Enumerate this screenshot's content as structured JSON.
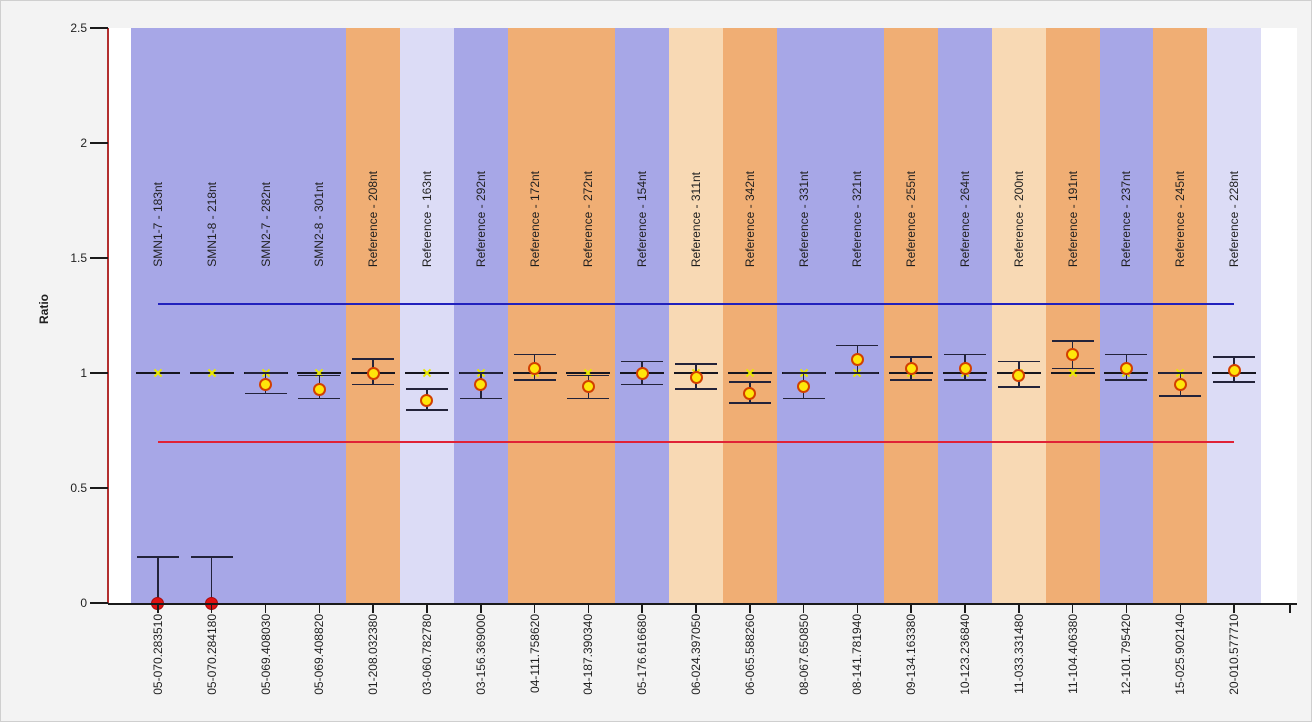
{
  "chart_data": {
    "type": "scatter",
    "title": "",
    "ylabel": "Ratio",
    "ylim": [
      0,
      2.5
    ],
    "yticks": [
      "0",
      "0.5",
      "1",
      "1.5",
      "2",
      "2.5"
    ],
    "grid": false,
    "legend_position": "none",
    "upper_limit": 1.3,
    "lower_limit": 0.7,
    "expected_ratio": 1.0,
    "colors": {
      "band_blue": "#a7a7e7",
      "band_orange": "#f0ae74",
      "band_lavender": "#dcdcf6",
      "band_peach": "#f8d9b4",
      "upper_limit_line": "#2121bd",
      "lower_limit_line": "#e02236",
      "y_axis_line": "#b22f2f",
      "x_axis_line": "#1a1a1a",
      "expected_line": "#16161f",
      "error_bar": "#23233a",
      "marker_fill": "#ffe60a",
      "marker_stroke": "#d24000",
      "zero_marker_fill": "#e01111",
      "zero_marker_stroke": "#a80b0b",
      "expected_marker": "#e8e800",
      "plot_background": "#ffffff"
    },
    "points": [
      {
        "sample": "05-070.283510",
        "probe": "SMN1-7 - 183nt",
        "band": "blue",
        "value": 0.0,
        "err_low": 0.0,
        "err_high": 0.2,
        "marker": "red"
      },
      {
        "sample": "05-070.284180",
        "probe": "SMN1-8 - 218nt",
        "band": "blue",
        "value": 0.0,
        "err_low": 0.0,
        "err_high": 0.2,
        "marker": "red"
      },
      {
        "sample": "05-069.408030",
        "probe": "SMN2-7 - 282nt",
        "band": "blue",
        "value": 0.95,
        "err_low": 0.91,
        "err_high": 1.0,
        "marker": "yellow"
      },
      {
        "sample": "05-069.408820",
        "probe": "SMN2-8 - 301nt",
        "band": "blue",
        "value": 0.93,
        "err_low": 0.89,
        "err_high": 0.99,
        "marker": "yellow"
      },
      {
        "sample": "01-208.032380",
        "probe": "Reference - 208nt",
        "band": "orange",
        "value": 1.0,
        "err_low": 0.95,
        "err_high": 1.06,
        "marker": "yellow"
      },
      {
        "sample": "03-060.782780",
        "probe": "Reference - 163nt",
        "band": "lavender",
        "value": 0.88,
        "err_low": 0.84,
        "err_high": 0.93,
        "marker": "yellow"
      },
      {
        "sample": "03-156.369000",
        "probe": "Reference - 292nt",
        "band": "blue",
        "value": 0.95,
        "err_low": 0.89,
        "err_high": 1.0,
        "marker": "yellow"
      },
      {
        "sample": "04-111.758620",
        "probe": "Reference - 172nt",
        "band": "orange",
        "value": 1.02,
        "err_low": 0.97,
        "err_high": 1.08,
        "marker": "yellow"
      },
      {
        "sample": "04-187.390340",
        "probe": "Reference - 272nt",
        "band": "orange",
        "value": 0.94,
        "err_low": 0.89,
        "err_high": 0.99,
        "marker": "yellow"
      },
      {
        "sample": "05-176.616680",
        "probe": "Reference - 154nt",
        "band": "blue",
        "value": 1.0,
        "err_low": 0.95,
        "err_high": 1.05,
        "marker": "yellow"
      },
      {
        "sample": "06-024.397050",
        "probe": "Reference - 311nt",
        "band": "peach",
        "value": 0.98,
        "err_low": 0.93,
        "err_high": 1.04,
        "marker": "yellow"
      },
      {
        "sample": "06-065.588260",
        "probe": "Reference - 342nt",
        "band": "orange",
        "value": 0.91,
        "err_low": 0.87,
        "err_high": 0.96,
        "marker": "yellow"
      },
      {
        "sample": "08-067.650850",
        "probe": "Reference - 331nt",
        "band": "blue",
        "value": 0.94,
        "err_low": 0.89,
        "err_high": 1.0,
        "marker": "yellow"
      },
      {
        "sample": "08-141.781940",
        "probe": "Reference - 321nt",
        "band": "blue",
        "value": 1.06,
        "err_low": 1.0,
        "err_high": 1.12,
        "marker": "yellow"
      },
      {
        "sample": "09-134.163380",
        "probe": "Reference - 255nt",
        "band": "orange",
        "value": 1.02,
        "err_low": 0.97,
        "err_high": 1.07,
        "marker": "yellow"
      },
      {
        "sample": "10-123.236840",
        "probe": "Reference - 264nt",
        "band": "blue",
        "value": 1.02,
        "err_low": 0.97,
        "err_high": 1.08,
        "marker": "yellow"
      },
      {
        "sample": "11-033.331480",
        "probe": "Reference - 200nt",
        "band": "peach",
        "value": 0.99,
        "err_low": 0.94,
        "err_high": 1.05,
        "marker": "yellow"
      },
      {
        "sample": "11-104.406380",
        "probe": "Reference - 191nt",
        "band": "orange",
        "value": 1.08,
        "err_low": 1.02,
        "err_high": 1.14,
        "marker": "yellow"
      },
      {
        "sample": "12-101.795420",
        "probe": "Reference - 237nt",
        "band": "blue",
        "value": 1.02,
        "err_low": 0.97,
        "err_high": 1.08,
        "marker": "yellow"
      },
      {
        "sample": "15-025.902140",
        "probe": "Reference - 245nt",
        "band": "orange",
        "value": 0.95,
        "err_low": 0.9,
        "err_high": 1.0,
        "marker": "yellow"
      },
      {
        "sample": "20-010.577710",
        "probe": "Reference - 228nt",
        "band": "lavender",
        "value": 1.01,
        "err_low": 0.96,
        "err_high": 1.07,
        "marker": "yellow"
      }
    ]
  }
}
